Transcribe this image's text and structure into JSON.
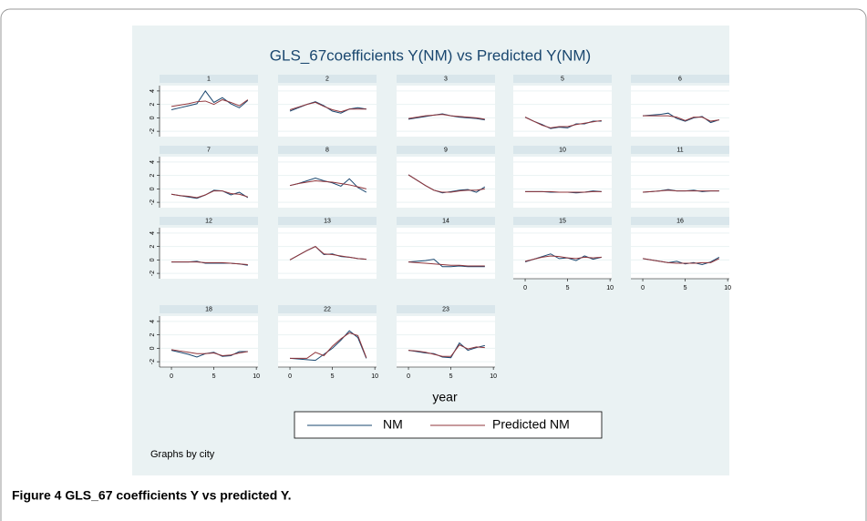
{
  "caption": "Figure 4 GLS_67 coefficients Y vs predicted Y.",
  "chart_data": {
    "type": "line",
    "title": "GLS_67coefficients Y(NM) vs Predicted Y(NM)",
    "x_label": "year",
    "note": "Graphs by city",
    "grid": true,
    "xlim": [
      -1.4,
      10.2
    ],
    "ylim": [
      -2.8,
      4.8
    ],
    "xticks": [
      0,
      5,
      10
    ],
    "yticks": [
      -2,
      0,
      2,
      4
    ],
    "x": [
      0,
      1,
      2,
      3,
      4,
      5,
      6,
      7,
      8,
      9
    ],
    "panels": [
      "1",
      "2",
      "3",
      "5",
      "6",
      "7",
      "8",
      "9",
      "10",
      "11",
      "12",
      "13",
      "14",
      "15",
      "16",
      "18",
      "22",
      "23"
    ],
    "series": [
      {
        "name": "NM",
        "color": "#1a476f",
        "values": [
          [
            1.2,
            1.5,
            1.8,
            2.1,
            4.0,
            2.3,
            3.0,
            2.1,
            1.5,
            2.6
          ],
          [
            1.0,
            1.5,
            2.0,
            2.4,
            1.8,
            1.0,
            0.7,
            1.3,
            1.5,
            1.3
          ],
          [
            -0.2,
            0,
            0.2,
            0.4,
            0.6,
            0.3,
            0.1,
            0,
            -0.1,
            -0.3
          ],
          [
            0.1,
            -0.5,
            -1.0,
            -1.6,
            -1.4,
            -1.5,
            -0.9,
            -0.9,
            -0.5,
            -0.5
          ],
          [
            0.3,
            0.4,
            0.5,
            0.7,
            -0.1,
            -0.5,
            0,
            0.2,
            -0.7,
            -0.3
          ],
          [
            -0.8,
            -1.0,
            -1.2,
            -1.4,
            -0.9,
            -0.2,
            -0.3,
            -0.9,
            -0.5,
            -1.3
          ],
          [
            0.5,
            0.8,
            1.2,
            1.6,
            1.2,
            0.9,
            0.4,
            1.5,
            0.2,
            -0.5
          ],
          [
            2.1,
            1.3,
            0.5,
            -0.2,
            -0.6,
            -0.4,
            -0.2,
            -0.1,
            -0.5,
            0.3
          ],
          [
            -0.4,
            -0.4,
            -0.4,
            -0.5,
            -0.5,
            -0.5,
            -0.6,
            -0.5,
            -0.3,
            -0.4
          ],
          [
            -0.5,
            -0.4,
            -0.3,
            -0.1,
            -0.3,
            -0.3,
            -0.2,
            -0.4,
            -0.3,
            -0.3
          ],
          [
            -0.3,
            -0.3,
            -0.3,
            -0.2,
            -0.5,
            -0.5,
            -0.5,
            -0.5,
            -0.6,
            -0.8
          ],
          [
            0,
            0.7,
            1.4,
            2.0,
            0.8,
            0.9,
            0.5,
            0.4,
            0.2,
            0.1
          ],
          [
            -0.3,
            -0.2,
            -0.1,
            0.1,
            -1.0,
            -1.0,
            -0.9,
            -1.0,
            -1.0,
            -1.0
          ],
          [
            -0.3,
            0.1,
            0.5,
            0.9,
            0.2,
            0.3,
            -0.1,
            0.6,
            0.1,
            0.4
          ],
          [
            0.2,
            0,
            -0.2,
            -0.4,
            -0.2,
            -0.6,
            -0.4,
            -0.7,
            -0.3,
            0.4
          ],
          [
            -0.3,
            -0.6,
            -0.9,
            -1.3,
            -0.8,
            -0.6,
            -1.2,
            -1.1,
            -0.5,
            -0.5
          ],
          [
            -1.5,
            -1.6,
            -1.7,
            -1.8,
            -0.9,
            0.0,
            1.2,
            2.6,
            1.6,
            -1.5
          ],
          [
            -0.3,
            -0.5,
            -0.7,
            -0.8,
            -1.3,
            -1.4,
            0.8,
            -0.3,
            0.1,
            0.4
          ]
        ]
      },
      {
        "name": "Predicted NM",
        "color": "#90353b",
        "values": [
          [
            1.7,
            1.9,
            2.1,
            2.4,
            2.5,
            2.0,
            2.7,
            2.3,
            1.8,
            2.7
          ],
          [
            1.2,
            1.6,
            2.0,
            2.3,
            1.7,
            1.2,
            0.9,
            1.3,
            1.3,
            1.3
          ],
          [
            -0.1,
            0.1,
            0.3,
            0.4,
            0.5,
            0.3,
            0.2,
            0.1,
            0,
            -0.2
          ],
          [
            0.1,
            -0.5,
            -1.1,
            -1.5,
            -1.3,
            -1.3,
            -1.0,
            -0.8,
            -0.6,
            -0.4
          ],
          [
            0.3,
            0.3,
            0.3,
            0.3,
            0.1,
            -0.4,
            0.1,
            0.1,
            -0.5,
            -0.3
          ],
          [
            -0.8,
            -1.0,
            -1.1,
            -1.3,
            -0.9,
            -0.3,
            -0.3,
            -0.7,
            -0.8,
            -1.2
          ],
          [
            0.5,
            0.8,
            1.0,
            1.2,
            1.1,
            1.0,
            0.8,
            0.6,
            0.3,
            0
          ],
          [
            2.1,
            1.3,
            0.5,
            -0.2,
            -0.5,
            -0.5,
            -0.3,
            -0.2,
            -0.2,
            0
          ],
          [
            -0.4,
            -0.4,
            -0.4,
            -0.4,
            -0.5,
            -0.5,
            -0.5,
            -0.5,
            -0.4,
            -0.4
          ],
          [
            -0.5,
            -0.4,
            -0.3,
            -0.2,
            -0.3,
            -0.3,
            -0.3,
            -0.3,
            -0.3,
            -0.3
          ],
          [
            -0.3,
            -0.3,
            -0.3,
            -0.3,
            -0.4,
            -0.4,
            -0.4,
            -0.5,
            -0.6,
            -0.7
          ],
          [
            0,
            0.7,
            1.4,
            2.0,
            0.9,
            0.8,
            0.6,
            0.4,
            0.2,
            0.1
          ],
          [
            -0.3,
            -0.4,
            -0.5,
            -0.6,
            -0.7,
            -0.8,
            -0.8,
            -0.9,
            -0.9,
            -0.9
          ],
          [
            -0.2,
            0.1,
            0.4,
            0.6,
            0.5,
            0.3,
            0.2,
            0.4,
            0.3,
            0.4
          ],
          [
            0.2,
            0,
            -0.2,
            -0.4,
            -0.5,
            -0.5,
            -0.5,
            -0.4,
            -0.4,
            0.2
          ],
          [
            -0.2,
            -0.4,
            -0.6,
            -0.8,
            -0.8,
            -0.7,
            -1.1,
            -1.0,
            -0.7,
            -0.5
          ],
          [
            -1.5,
            -1.5,
            -1.5,
            -0.6,
            -1.1,
            0.3,
            1.4,
            2.3,
            1.9,
            -1.4
          ],
          [
            -0.3,
            -0.4,
            -0.6,
            -0.9,
            -1.2,
            -1.2,
            0.5,
            -0.1,
            0.2,
            0.1
          ]
        ]
      }
    ]
  }
}
